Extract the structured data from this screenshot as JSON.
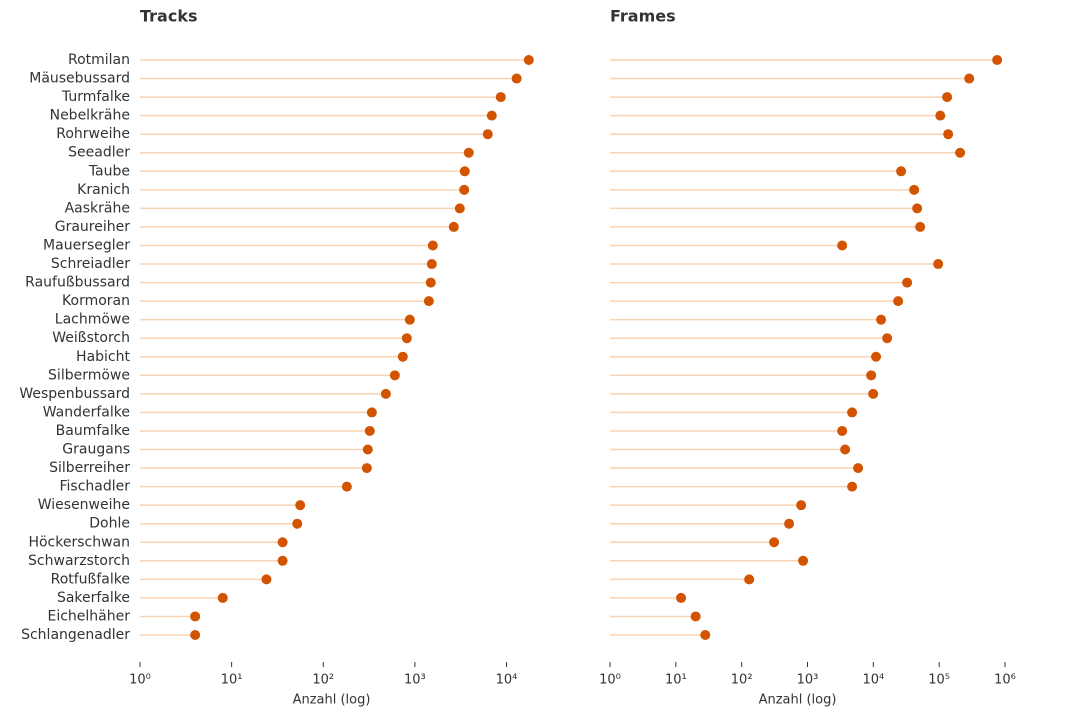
{
  "chart_data": [
    {
      "type": "lollipop",
      "title": "Tracks",
      "xlabel": "Anzahl (log)",
      "xscale": "log",
      "color": "#d35400",
      "stem_color": "#f8d3b4",
      "categories": [
        "Rotmilan",
        "Mäusebussard",
        "Turmfalke",
        "Nebelkrähe",
        "Rohrweihe",
        "Seeadler",
        "Taube",
        "Kranich",
        "Aaskrähe",
        "Graureiher",
        "Mauersegler",
        "Schreiadler",
        "Raufußbussard",
        "Kormoran",
        "Lachmöwe",
        "Weißstorch",
        "Habicht",
        "Silbermöwe",
        "Wespenbussard",
        "Wanderfalke",
        "Baumfalke",
        "Graugans",
        "Silberreiher",
        "Fischadler",
        "Wiesenweihe",
        "Dohle",
        "Höckerschwan",
        "Schwarzstorch",
        "Rotfußfalke",
        "Sakerfalke",
        "Eichelhäher",
        "Schlangenadler"
      ],
      "values": [
        17500,
        12900,
        8650,
        6900,
        6240,
        3870,
        3500,
        3450,
        3090,
        2660,
        1570,
        1530,
        1490,
        1420,
        880,
        816,
        738,
        604,
        482,
        339,
        322,
        306,
        299,
        181,
        56,
        52,
        36,
        36,
        24,
        8,
        4,
        4
      ],
      "xlim": [
        1,
        25000
      ],
      "xticks": [
        {
          "value": 1,
          "label": "10⁰"
        },
        {
          "value": 10,
          "label": "10¹"
        },
        {
          "value": 100,
          "label": "10²"
        },
        {
          "value": 1000,
          "label": "10³"
        },
        {
          "value": 10000,
          "label": "10⁴"
        }
      ]
    },
    {
      "type": "lollipop",
      "title": "Frames",
      "xlabel": "Anzahl (log)",
      "xscale": "log",
      "color": "#d35400",
      "stem_color": "#f8d3b4",
      "values": [
        760000,
        286000,
        132000,
        104000,
        137000,
        208000,
        26400,
        41700,
        46300,
        51400,
        3360,
        96600,
        32600,
        23800,
        13100,
        16200,
        11000,
        9270,
        9940,
        4760,
        3360,
        3730,
        5870,
        4760,
        800,
        525,
        311,
        857,
        130,
        12,
        20,
        28
      ],
      "xlim": [
        1,
        1000000
      ],
      "xticks": [
        {
          "value": 1,
          "label": "10⁰"
        },
        {
          "value": 10,
          "label": "10¹"
        },
        {
          "value": 100,
          "label": "10²"
        },
        {
          "value": 1000,
          "label": "10³"
        },
        {
          "value": 10000,
          "label": "10⁴"
        },
        {
          "value": 100000,
          "label": "10⁵"
        },
        {
          "value": 1000000,
          "label": "10⁶"
        }
      ]
    }
  ]
}
